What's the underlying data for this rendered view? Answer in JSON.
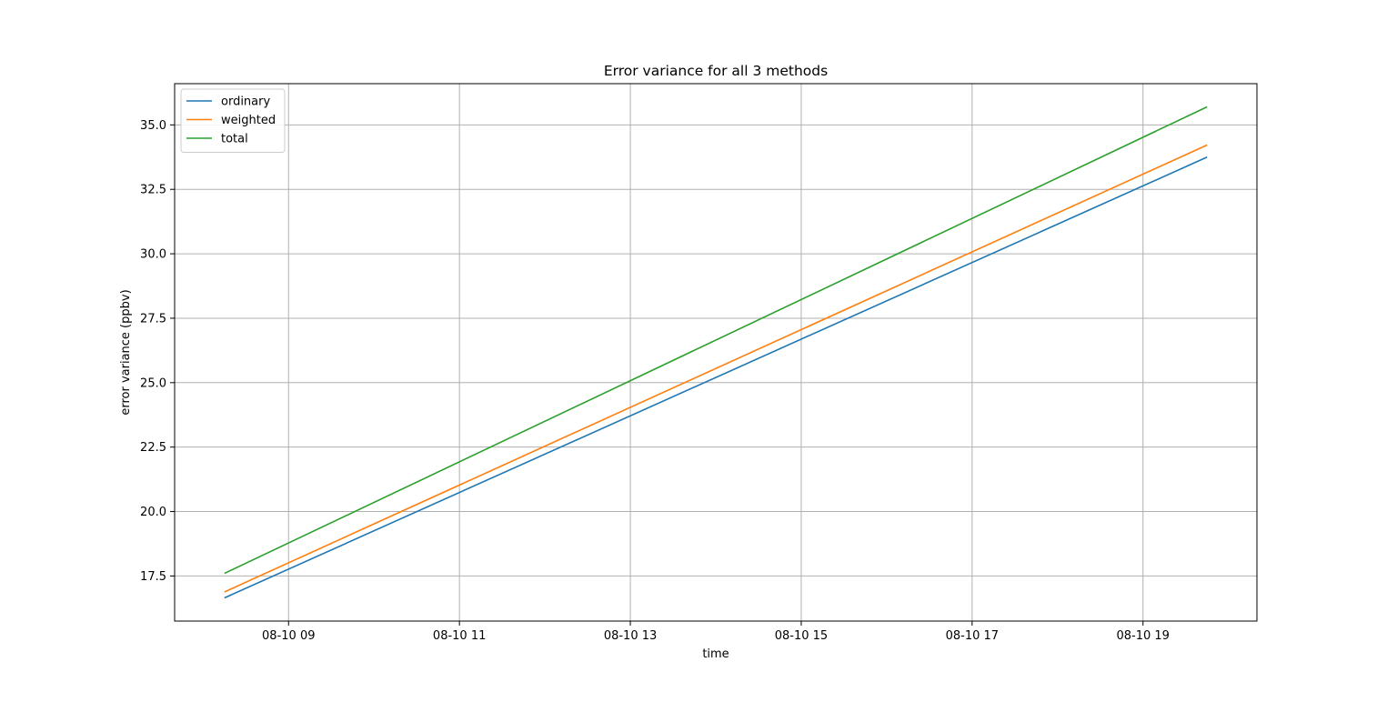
{
  "chart_data": {
    "type": "line",
    "title": "Error variance for all 3 methods",
    "xlabel": "time",
    "ylabel": "error variance (ppbv)",
    "x": [
      "08-10 08:15",
      "08-10 19:45"
    ],
    "series": [
      {
        "name": "ordinary",
        "color": "#1f77b4",
        "values": [
          16.65,
          33.75
        ]
      },
      {
        "name": "weighted",
        "color": "#ff7f0e",
        "values": [
          16.88,
          34.22
        ]
      },
      {
        "name": "total",
        "color": "#2ca02c",
        "values": [
          17.6,
          35.7
        ]
      }
    ],
    "xlim": [
      "08-10 07:40",
      "08-10 20:20"
    ],
    "ylim": [
      15.75,
      36.6
    ],
    "xticks": [
      {
        "label": "08-10 09",
        "hour": 9
      },
      {
        "label": "08-10 11",
        "hour": 11
      },
      {
        "label": "08-10 13",
        "hour": 13
      },
      {
        "label": "08-10 15",
        "hour": 15
      },
      {
        "label": "08-10 17",
        "hour": 17
      },
      {
        "label": "08-10 19",
        "hour": 19
      }
    ],
    "yticks": [
      "17.5",
      "20.0",
      "22.5",
      "25.0",
      "27.5",
      "30.0",
      "32.5",
      "35.0"
    ],
    "grid": true,
    "legend_position": "upper-left"
  }
}
